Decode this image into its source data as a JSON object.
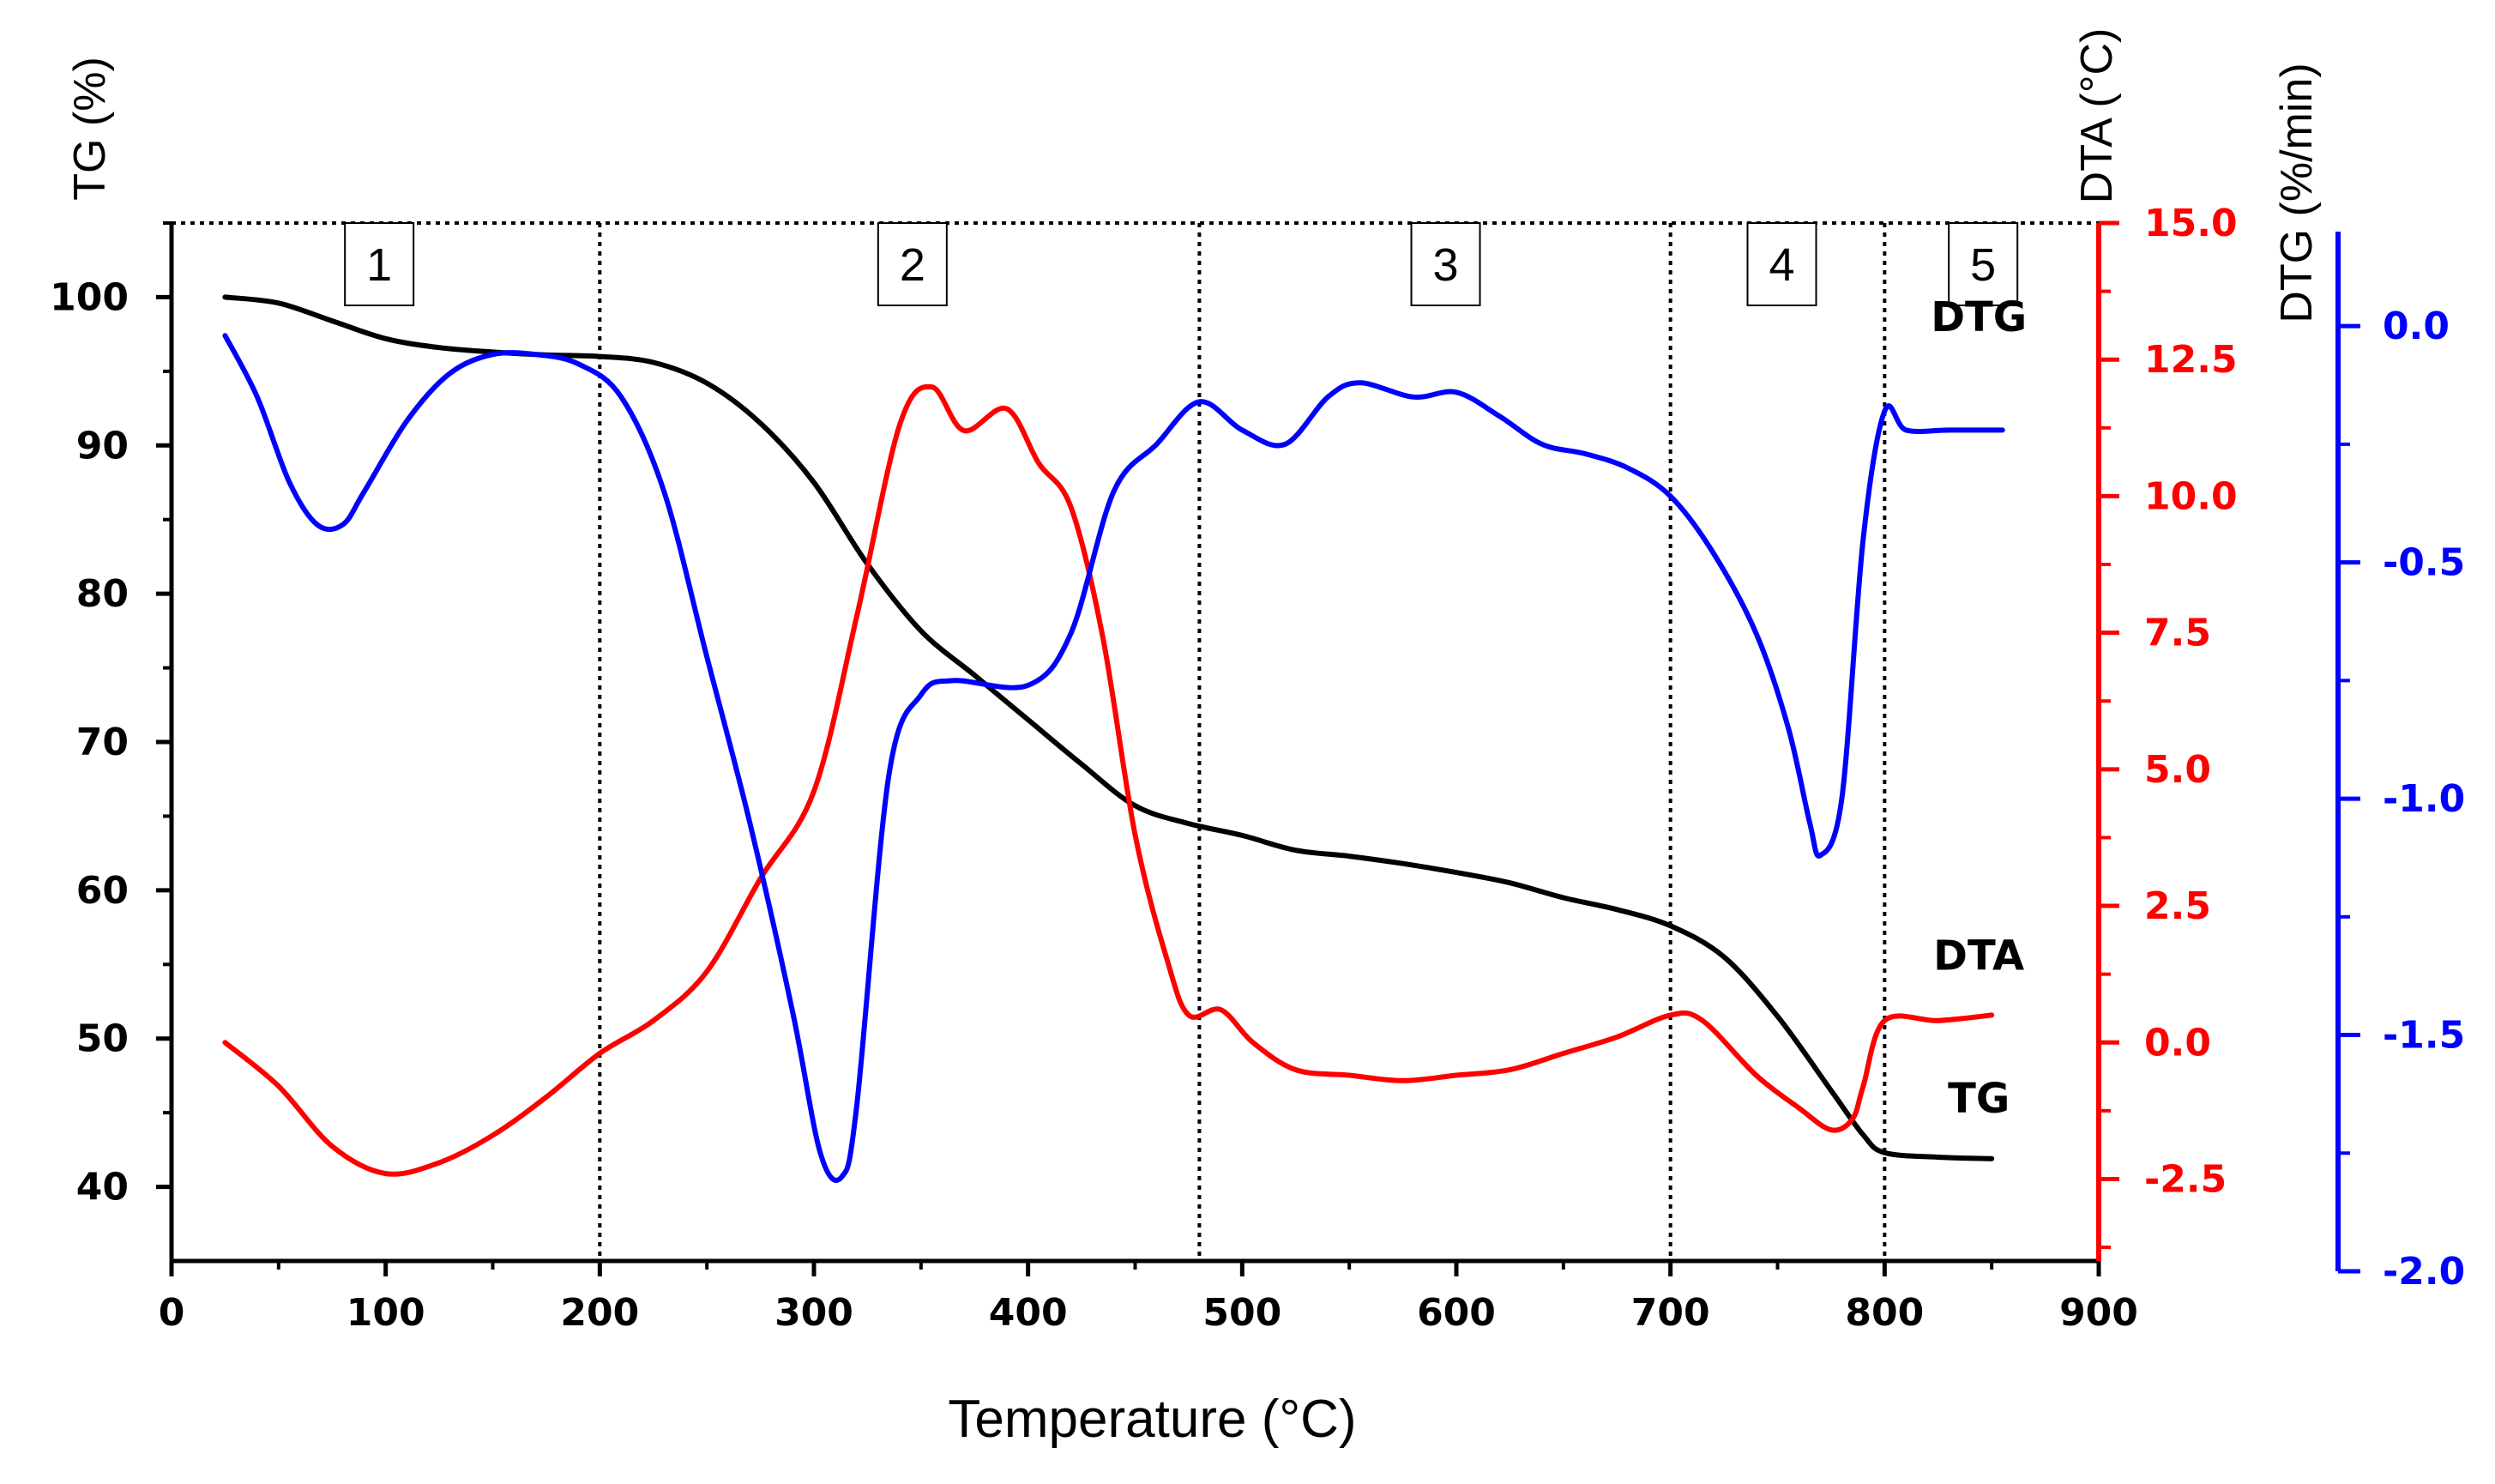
{
  "chart_data": {
    "type": "line",
    "title": "",
    "xlabel": "Temperature (°C)",
    "xlim": [
      0,
      900
    ],
    "x_ticks": [
      0,
      100,
      200,
      300,
      400,
      500,
      600,
      700,
      800,
      900
    ],
    "axes": {
      "tg": {
        "label": "TG (%)",
        "ylim": [
          35,
          105
        ],
        "ticks": [
          40,
          50,
          60,
          70,
          80,
          90,
          100
        ],
        "color": "#000000"
      },
      "dta": {
        "label": "DTA (°C)",
        "ylim": [
          -4.0,
          15.0
        ],
        "ticks": [
          -2.5,
          0.0,
          2.5,
          5.0,
          7.5,
          10.0,
          12.5,
          15.0
        ],
        "tick_labels": [
          "-2.5",
          "0.0",
          "2.5",
          "5.0",
          "7.5",
          "10.0",
          "12.5",
          "15.0"
        ],
        "color": "#ff0000"
      },
      "dtg": {
        "label": "DTG (%/min)",
        "ylim": [
          -2.0,
          0.2
        ],
        "ticks": [
          -2.0,
          -1.5,
          -1.0,
          -0.5,
          0.0
        ],
        "tick_labels": [
          "-2.0",
          "-1.5",
          "-1.0",
          "-0.5",
          "0.0"
        ],
        "color": "#0000ff"
      }
    },
    "zone_boundaries": [
      200,
      480,
      700,
      800
    ],
    "zones": [
      {
        "label": "1",
        "x": 97
      },
      {
        "label": "2",
        "x": 346
      },
      {
        "label": "3",
        "x": 595
      },
      {
        "label": "4",
        "x": 752
      },
      {
        "label": "5",
        "x": 846
      }
    ],
    "series": [
      {
        "name": "TG",
        "axis": "tg",
        "color": "#000000",
        "label": "TG",
        "label_at": [
          844,
          46
        ],
        "x": [
          25,
          50,
          75,
          100,
          125,
          150,
          175,
          200,
          225,
          250,
          275,
          300,
          325,
          350,
          375,
          400,
          425,
          450,
          475,
          500,
          525,
          550,
          575,
          600,
          625,
          650,
          675,
          700,
          725,
          750,
          775,
          790,
          800,
          825,
          850
        ],
        "y": [
          100,
          99.6,
          98.4,
          97.2,
          96.6,
          96.3,
          96.1,
          96.0,
          95.6,
          94.2,
          91.5,
          87.5,
          82.0,
          77.5,
          74.5,
          71.5,
          68.5,
          65.7,
          64.5,
          63.7,
          62.7,
          62.3,
          61.8,
          61.2,
          60.5,
          59.5,
          58.7,
          57.6,
          55.5,
          51.5,
          46.5,
          43.5,
          42.3,
          42.0,
          41.9
        ]
      },
      {
        "name": "DTA",
        "axis": "dta",
        "color": "#ff0000",
        "label": "DTA",
        "label_at": [
          844,
          1.6
        ],
        "x": [
          25,
          50,
          75,
          100,
          125,
          150,
          175,
          200,
          225,
          250,
          275,
          300,
          320,
          340,
          355,
          370,
          390,
          405,
          420,
          435,
          450,
          465,
          475,
          490,
          505,
          525,
          550,
          575,
          600,
          625,
          650,
          675,
          700,
          715,
          740,
          760,
          775,
          785,
          790,
          800,
          825,
          850
        ],
        "y": [
          0.0,
          -0.8,
          -1.9,
          -2.4,
          -2.2,
          -1.7,
          -1.0,
          -0.2,
          0.4,
          1.3,
          3.0,
          4.6,
          7.8,
          11.3,
          12.0,
          11.2,
          11.6,
          10.6,
          9.8,
          7.4,
          3.8,
          1.5,
          0.5,
          0.6,
          0.0,
          -0.5,
          -0.6,
          -0.7,
          -0.6,
          -0.5,
          -0.2,
          0.1,
          0.5,
          0.4,
          -0.6,
          -1.2,
          -1.6,
          -1.4,
          -0.8,
          0.4,
          0.4,
          0.5
        ]
      },
      {
        "name": "DTG",
        "axis": "dtg",
        "color": "#0000ff",
        "label": "DTG",
        "label_at": [
          844,
          0.02
        ],
        "x": [
          25,
          40,
          55,
          68,
          80,
          90,
          110,
          130,
          150,
          170,
          190,
          210,
          230,
          250,
          270,
          290,
          303,
          313,
          320,
          335,
          350,
          365,
          400,
          420,
          440,
          460,
          480,
          500,
          520,
          540,
          555,
          580,
          600,
          620,
          640,
          660,
          680,
          700,
          720,
          740,
          755,
          765,
          770,
          780,
          790,
          800,
          810,
          830,
          855
        ],
        "y": [
          -0.02,
          -0.15,
          -0.33,
          -0.42,
          -0.42,
          -0.35,
          -0.2,
          -0.1,
          -0.06,
          -0.06,
          -0.08,
          -0.15,
          -0.35,
          -0.7,
          -1.05,
          -1.45,
          -1.75,
          -1.8,
          -1.65,
          -0.95,
          -0.78,
          -0.75,
          -0.76,
          -0.65,
          -0.35,
          -0.25,
          -0.16,
          -0.22,
          -0.25,
          -0.15,
          -0.12,
          -0.15,
          -0.14,
          -0.19,
          -0.25,
          -0.27,
          -0.3,
          -0.36,
          -0.48,
          -0.65,
          -0.85,
          -1.05,
          -1.12,
          -1.0,
          -0.45,
          -0.18,
          -0.22,
          -0.22,
          -0.22
        ]
      }
    ]
  }
}
